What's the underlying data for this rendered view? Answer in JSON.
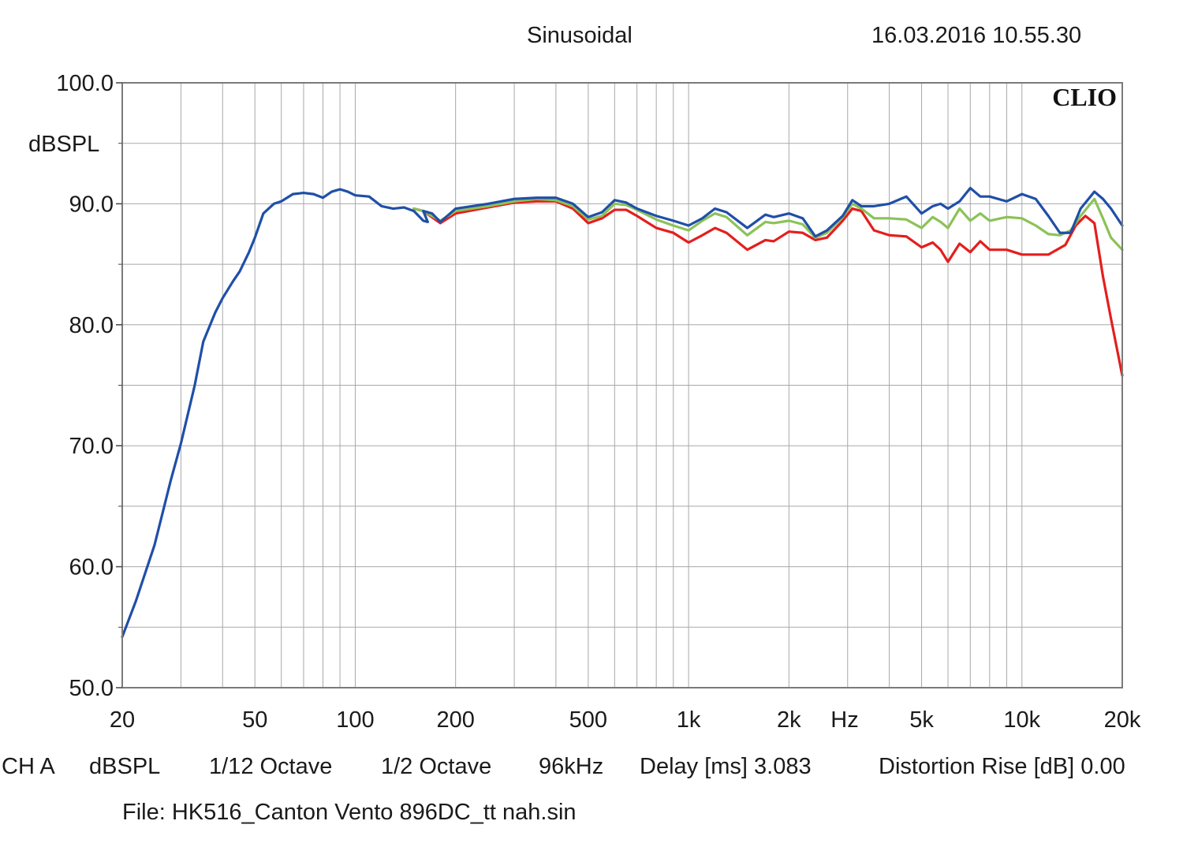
{
  "header": {
    "mode": "Sinusoidal",
    "timestamp": "16.03.2016 10.55.30"
  },
  "footer": {
    "channel": "CH A",
    "unit": "dBSPL",
    "resolution": "1/12 Octave",
    "smoothing": "1/2 Octave",
    "sample_rate": "96kHz",
    "delay": "Delay [ms] 3.083",
    "distortion": "Distortion Rise [dB] 0.00",
    "file": "File: HK516_Canton Vento 896DC_tt nah.sin"
  },
  "chart_data": {
    "type": "line",
    "brand_label": "CLIO",
    "ylabel": "dBSPL",
    "xlabel": "Hz",
    "x_scale": "log",
    "xlim": [
      20,
      20000
    ],
    "ylim": [
      50,
      100
    ],
    "grid": true,
    "y_ticks": [
      {
        "value": 100,
        "label": "100.0"
      },
      {
        "value": 90,
        "label": "90.0"
      },
      {
        "value": 80,
        "label": "80.0"
      },
      {
        "value": 70,
        "label": "70.0"
      },
      {
        "value": 60,
        "label": "60.0"
      },
      {
        "value": 50,
        "label": "50.0"
      }
    ],
    "x_ticks": [
      {
        "value": 20,
        "label": "20"
      },
      {
        "value": 50,
        "label": "50"
      },
      {
        "value": 100,
        "label": "100"
      },
      {
        "value": 200,
        "label": "200"
      },
      {
        "value": 500,
        "label": "500"
      },
      {
        "value": 1000,
        "label": "1k"
      },
      {
        "value": 2000,
        "label": "2k"
      },
      {
        "value": 5000,
        "label": "5k"
      },
      {
        "value": 10000,
        "label": "10k"
      },
      {
        "value": 20000,
        "label": "20k"
      }
    ],
    "series": [
      {
        "color": "#e41e1e",
        "points": [
          [
            150,
            89.6
          ],
          [
            160,
            89.4
          ],
          [
            180,
            88.4
          ],
          [
            200,
            89.2
          ],
          [
            250,
            89.7
          ],
          [
            300,
            90.1
          ],
          [
            350,
            90.2
          ],
          [
            400,
            90.2
          ],
          [
            450,
            89.6
          ],
          [
            500,
            88.4
          ],
          [
            550,
            88.8
          ],
          [
            600,
            89.5
          ],
          [
            650,
            89.5
          ],
          [
            700,
            89.0
          ],
          [
            800,
            88.0
          ],
          [
            900,
            87.6
          ],
          [
            1000,
            86.8
          ],
          [
            1100,
            87.4
          ],
          [
            1200,
            88.0
          ],
          [
            1300,
            87.6
          ],
          [
            1500,
            86.2
          ],
          [
            1700,
            87.0
          ],
          [
            1800,
            86.9
          ],
          [
            2000,
            87.7
          ],
          [
            2200,
            87.6
          ],
          [
            2400,
            87.0
          ],
          [
            2600,
            87.2
          ],
          [
            2900,
            88.6
          ],
          [
            3100,
            89.6
          ],
          [
            3300,
            89.4
          ],
          [
            3600,
            87.8
          ],
          [
            4000,
            87.4
          ],
          [
            4500,
            87.3
          ],
          [
            5000,
            86.4
          ],
          [
            5400,
            86.8
          ],
          [
            5700,
            86.2
          ],
          [
            6000,
            85.2
          ],
          [
            6500,
            86.7
          ],
          [
            7000,
            86.0
          ],
          [
            7500,
            86.9
          ],
          [
            8000,
            86.2
          ],
          [
            9000,
            86.2
          ],
          [
            10000,
            85.8
          ],
          [
            12000,
            85.8
          ],
          [
            13500,
            86.6
          ],
          [
            14500,
            88.2
          ],
          [
            15500,
            89.0
          ],
          [
            16500,
            88.4
          ],
          [
            17500,
            84.0
          ],
          [
            18500,
            80.5
          ],
          [
            20000,
            75.8
          ]
        ]
      },
      {
        "color": "#8cc258",
        "points": [
          [
            150,
            89.6
          ],
          [
            160,
            89.4
          ],
          [
            180,
            88.6
          ],
          [
            200,
            89.4
          ],
          [
            250,
            89.8
          ],
          [
            300,
            90.2
          ],
          [
            350,
            90.4
          ],
          [
            400,
            90.3
          ],
          [
            450,
            89.8
          ],
          [
            500,
            88.7
          ],
          [
            550,
            89.0
          ],
          [
            600,
            90.0
          ],
          [
            650,
            89.9
          ],
          [
            700,
            89.5
          ],
          [
            800,
            88.7
          ],
          [
            900,
            88.2
          ],
          [
            1000,
            87.8
          ],
          [
            1100,
            88.6
          ],
          [
            1200,
            89.2
          ],
          [
            1300,
            88.9
          ],
          [
            1500,
            87.4
          ],
          [
            1700,
            88.5
          ],
          [
            1800,
            88.4
          ],
          [
            2000,
            88.6
          ],
          [
            2200,
            88.3
          ],
          [
            2400,
            87.2
          ],
          [
            2600,
            87.6
          ],
          [
            2900,
            88.9
          ],
          [
            3100,
            90.0
          ],
          [
            3300,
            89.6
          ],
          [
            3600,
            88.8
          ],
          [
            4000,
            88.8
          ],
          [
            4500,
            88.7
          ],
          [
            5000,
            88.0
          ],
          [
            5400,
            88.9
          ],
          [
            5700,
            88.5
          ],
          [
            6000,
            88.0
          ],
          [
            6500,
            89.6
          ],
          [
            7000,
            88.6
          ],
          [
            7500,
            89.2
          ],
          [
            8000,
            88.6
          ],
          [
            9000,
            88.9
          ],
          [
            10000,
            88.8
          ],
          [
            11000,
            88.2
          ],
          [
            12000,
            87.5
          ],
          [
            13000,
            87.4
          ],
          [
            14000,
            87.8
          ],
          [
            15000,
            89.0
          ],
          [
            16500,
            90.4
          ],
          [
            17500,
            88.8
          ],
          [
            18500,
            87.2
          ],
          [
            20000,
            86.2
          ]
        ]
      },
      {
        "color": "#1f4fa8",
        "points": [
          [
            20,
            54.2
          ],
          [
            22,
            57.2
          ],
          [
            25,
            61.8
          ],
          [
            28,
            67.2
          ],
          [
            30,
            70.2
          ],
          [
            33,
            75.0
          ],
          [
            35,
            78.6
          ],
          [
            38,
            81.0
          ],
          [
            40,
            82.2
          ],
          [
            43,
            83.6
          ],
          [
            45,
            84.4
          ],
          [
            48,
            86.0
          ],
          [
            50,
            87.2
          ],
          [
            53,
            89.2
          ],
          [
            57,
            90.0
          ],
          [
            60,
            90.2
          ],
          [
            65,
            90.8
          ],
          [
            70,
            90.9
          ],
          [
            75,
            90.8
          ],
          [
            80,
            90.5
          ],
          [
            85,
            91.0
          ],
          [
            90,
            91.2
          ],
          [
            95,
            91.0
          ],
          [
            100,
            90.7
          ],
          [
            110,
            90.6
          ],
          [
            120,
            89.8
          ],
          [
            130,
            89.6
          ],
          [
            140,
            89.7
          ],
          [
            150,
            89.4
          ],
          [
            160,
            88.6
          ],
          [
            165,
            88.5
          ],
          [
            160,
            89.4
          ],
          [
            170,
            89.2
          ],
          [
            180,
            88.5
          ],
          [
            200,
            89.6
          ],
          [
            250,
            90.0
          ],
          [
            300,
            90.4
          ],
          [
            350,
            90.5
          ],
          [
            400,
            90.5
          ],
          [
            450,
            90.0
          ],
          [
            500,
            88.9
          ],
          [
            550,
            89.3
          ],
          [
            600,
            90.3
          ],
          [
            650,
            90.1
          ],
          [
            700,
            89.6
          ],
          [
            800,
            89.0
          ],
          [
            900,
            88.6
          ],
          [
            1000,
            88.2
          ],
          [
            1100,
            88.8
          ],
          [
            1200,
            89.6
          ],
          [
            1300,
            89.3
          ],
          [
            1500,
            88.0
          ],
          [
            1700,
            89.1
          ],
          [
            1800,
            88.9
          ],
          [
            2000,
            89.2
          ],
          [
            2200,
            88.8
          ],
          [
            2400,
            87.3
          ],
          [
            2600,
            87.8
          ],
          [
            2900,
            89.0
          ],
          [
            3100,
            90.3
          ],
          [
            3300,
            89.8
          ],
          [
            3600,
            89.8
          ],
          [
            4000,
            90.0
          ],
          [
            4500,
            90.6
          ],
          [
            5000,
            89.2
          ],
          [
            5400,
            89.8
          ],
          [
            5700,
            90.0
          ],
          [
            6000,
            89.6
          ],
          [
            6500,
            90.2
          ],
          [
            7000,
            91.3
          ],
          [
            7500,
            90.6
          ],
          [
            8000,
            90.6
          ],
          [
            9000,
            90.2
          ],
          [
            10000,
            90.8
          ],
          [
            11000,
            90.4
          ],
          [
            12000,
            89.0
          ],
          [
            13000,
            87.6
          ],
          [
            14000,
            87.6
          ],
          [
            15000,
            89.6
          ],
          [
            16500,
            91.0
          ],
          [
            17500,
            90.4
          ],
          [
            18500,
            89.6
          ],
          [
            20000,
            88.2
          ]
        ]
      }
    ]
  }
}
